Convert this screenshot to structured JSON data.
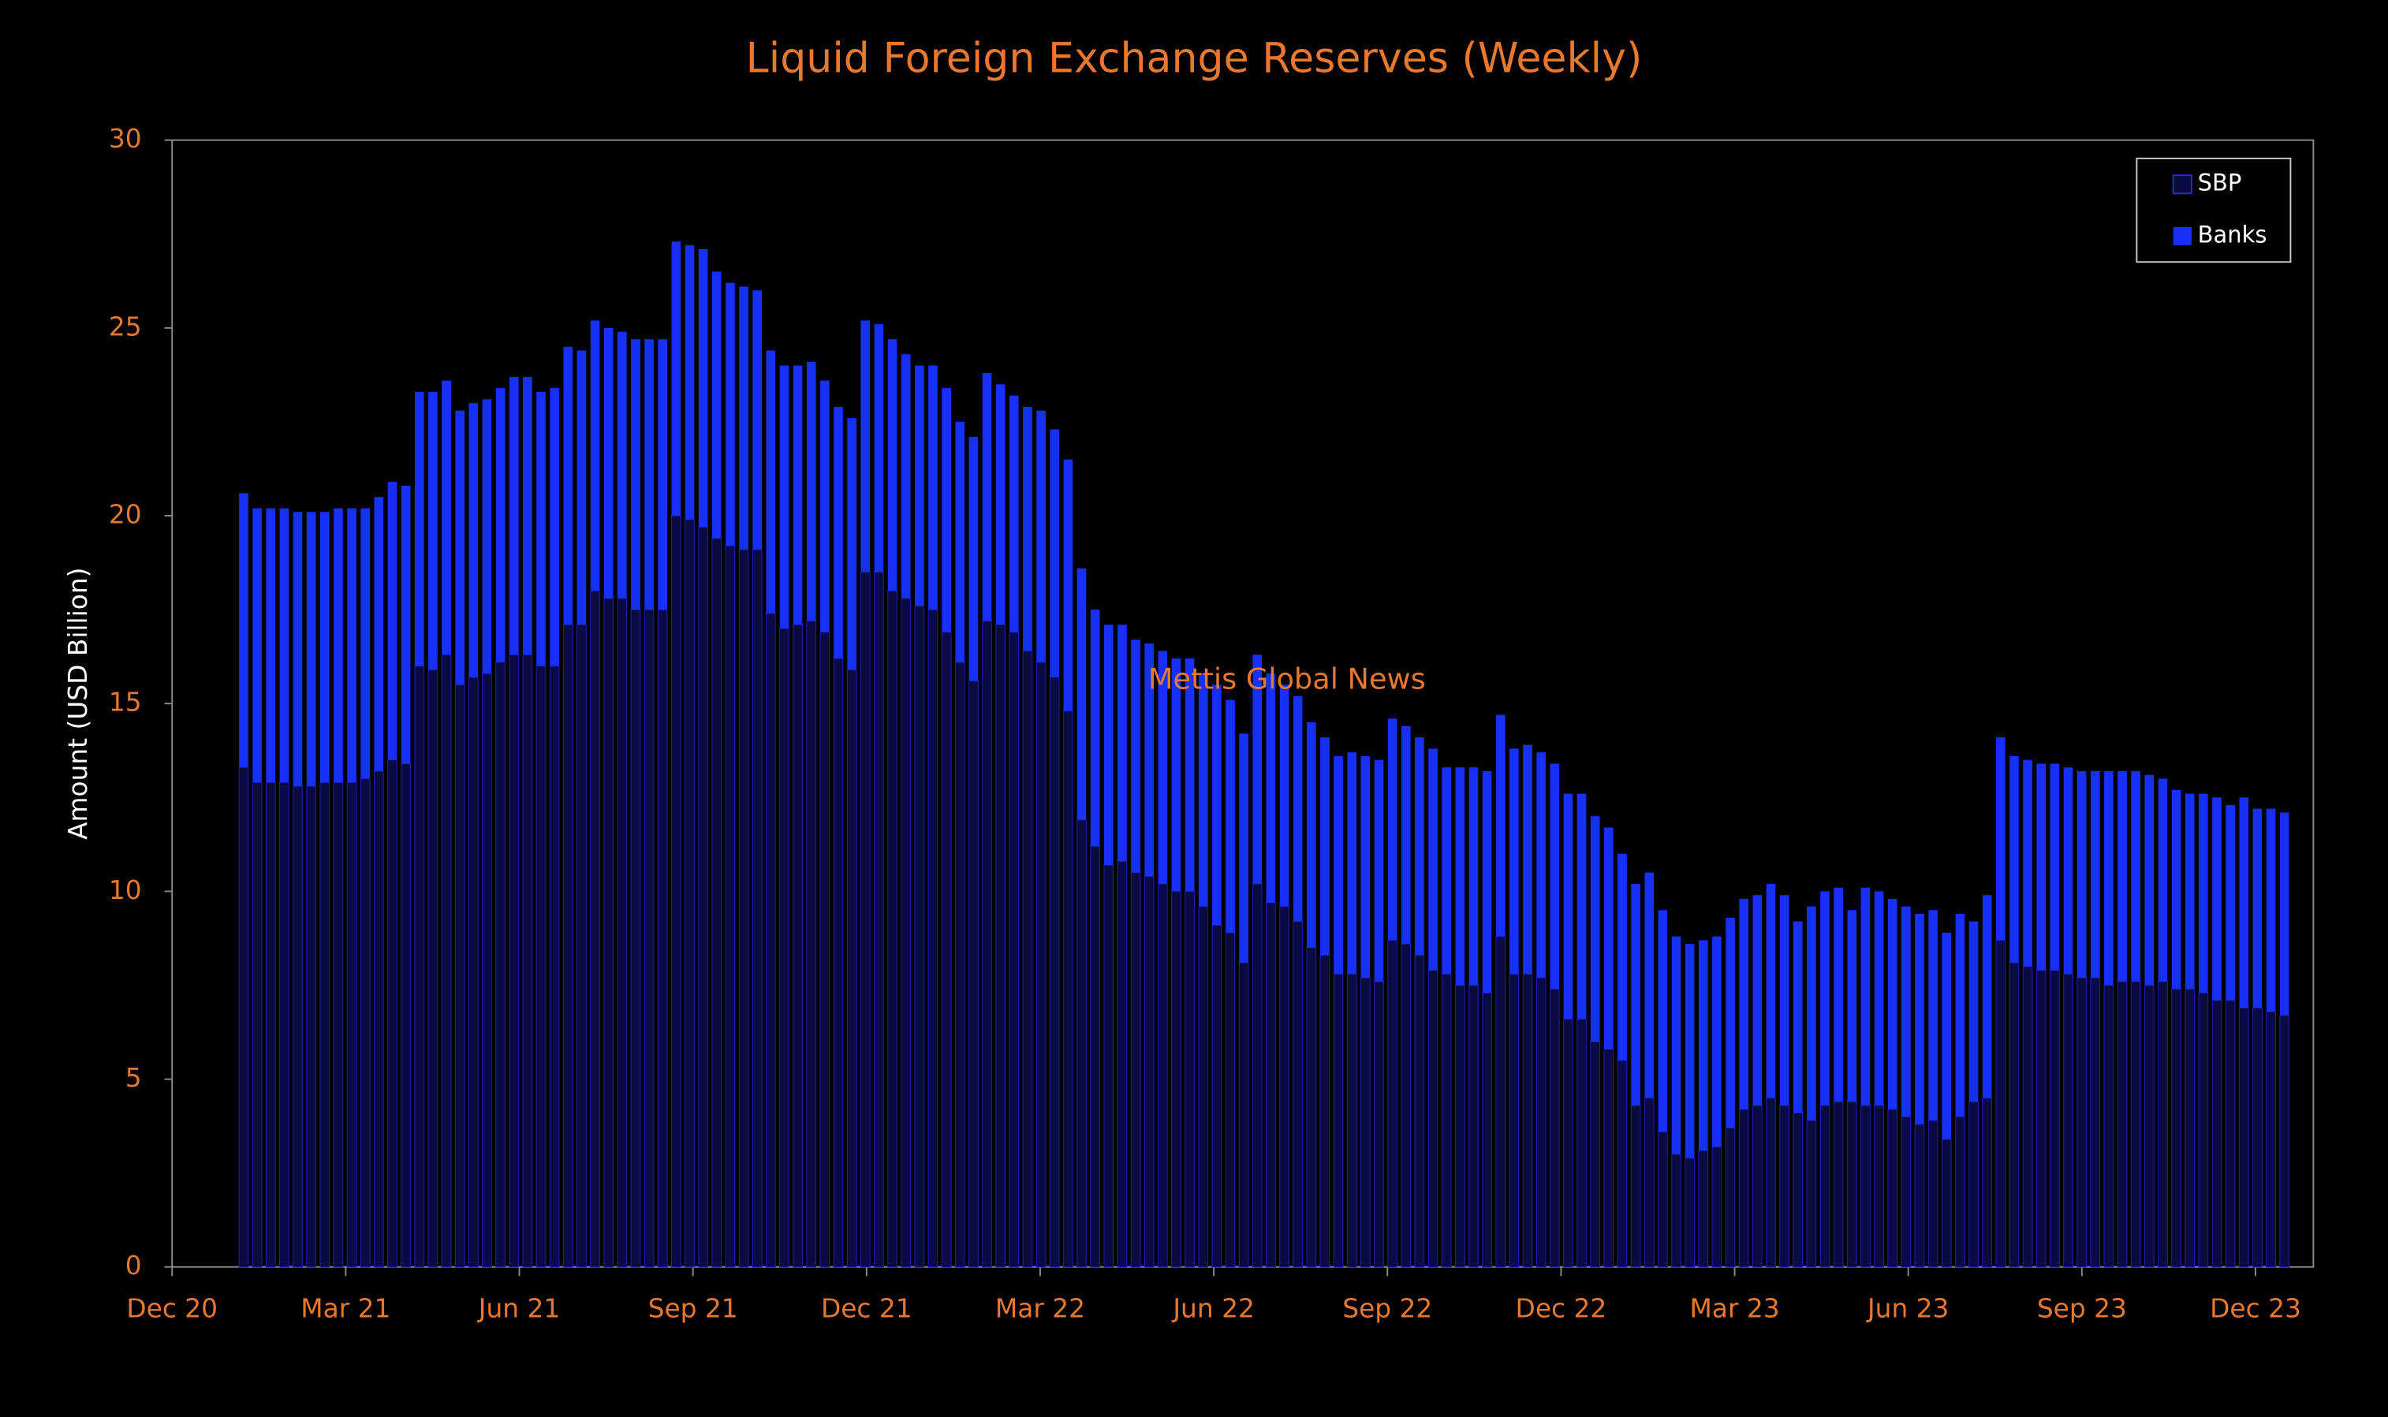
{
  "chart_data": {
    "type": "stacked_bar",
    "title": "Liquid Foreign Exchange Reserves (Weekly)",
    "y_label": "Amount (USD Billion)",
    "annotation": "Mettis Global News",
    "ylim": [
      0,
      30
    ],
    "yticks": [
      0,
      5,
      10,
      15,
      20,
      25,
      30
    ],
    "xticks": [
      "Dec 20",
      "Mar 21",
      "Jun 21",
      "Sep 21",
      "Dec 21",
      "Mar 22",
      "Jun 22",
      "Sep 22",
      "Dec 22",
      "Mar 23",
      "Jun 23",
      "Sep 23",
      "Dec 23"
    ],
    "legend": "top-right",
    "series": [
      {
        "name": "SBP",
        "color": "#0a0a45",
        "values": [
          13.3,
          12.9,
          12.9,
          12.9,
          12.8,
          12.8,
          12.9,
          12.9,
          12.9,
          13.0,
          13.2,
          13.5,
          13.4,
          16.0,
          15.9,
          16.3,
          15.5,
          15.7,
          15.8,
          16.1,
          16.3,
          16.3,
          16.0,
          16.0,
          17.1,
          17.1,
          18.0,
          17.8,
          17.8,
          17.5,
          17.5,
          17.5,
          20.0,
          19.9,
          19.7,
          19.4,
          19.2,
          19.1,
          19.1,
          17.4,
          17.0,
          17.1,
          17.2,
          16.9,
          16.2,
          15.9,
          18.5,
          18.5,
          18.0,
          17.8,
          17.6,
          17.5,
          16.9,
          16.1,
          15.6,
          17.2,
          17.1,
          16.9,
          16.4,
          16.1,
          15.7,
          14.8,
          11.9,
          11.2,
          10.7,
          10.8,
          10.5,
          10.4,
          10.2,
          10.0,
          10.0,
          9.6,
          9.1,
          8.9,
          8.1,
          10.2,
          9.7,
          9.6,
          9.2,
          8.5,
          8.3,
          7.8,
          7.8,
          7.7,
          7.6,
          8.7,
          8.6,
          8.3,
          7.9,
          7.8,
          7.5,
          7.5,
          7.3,
          8.8,
          7.8,
          7.8,
          7.7,
          7.4,
          6.6,
          6.6,
          6.0,
          5.8,
          5.5,
          4.3,
          4.5,
          3.6,
          3.0,
          2.9,
          3.1,
          3.2,
          3.7,
          4.2,
          4.3,
          4.5,
          4.3,
          4.1,
          3.9,
          4.3,
          4.4,
          4.4,
          4.3,
          4.3,
          4.2,
          4.0,
          3.8,
          3.9,
          3.4,
          4.0,
          4.4,
          4.5,
          8.7,
          8.1,
          8.0,
          7.9,
          7.9,
          7.8,
          7.7,
          7.7,
          7.5,
          7.6,
          7.6,
          7.5,
          7.6,
          7.4,
          7.4,
          7.3,
          7.1,
          7.1,
          6.9,
          6.9,
          6.8,
          6.7
        ]
      },
      {
        "name": "Banks",
        "color": "#1630f5",
        "values": [
          7.3,
          7.3,
          7.3,
          7.3,
          7.3,
          7.3,
          7.2,
          7.3,
          7.3,
          7.2,
          7.3,
          7.4,
          7.4,
          7.3,
          7.4,
          7.3,
          7.3,
          7.3,
          7.3,
          7.3,
          7.4,
          7.4,
          7.3,
          7.4,
          7.4,
          7.3,
          7.2,
          7.2,
          7.1,
          7.2,
          7.2,
          7.2,
          7.3,
          7.3,
          7.4,
          7.1,
          7.0,
          7.0,
          6.9,
          7.0,
          7.0,
          6.9,
          6.9,
          6.7,
          6.7,
          6.7,
          6.7,
          6.6,
          6.7,
          6.5,
          6.4,
          6.5,
          6.5,
          6.4,
          6.5,
          6.6,
          6.4,
          6.3,
          6.5,
          6.7,
          6.6,
          6.7,
          6.7,
          6.3,
          6.4,
          6.3,
          6.2,
          6.2,
          6.2,
          6.2,
          6.2,
          6.2,
          6.4,
          6.2,
          6.1,
          6.1,
          6.1,
          5.9,
          6.0,
          6.0,
          5.8,
          5.8,
          5.9,
          5.9,
          5.9,
          5.9,
          5.8,
          5.8,
          5.9,
          5.5,
          5.8,
          5.8,
          5.9,
          5.9,
          6.0,
          6.1,
          6.0,
          6.0,
          6.0,
          6.0,
          6.0,
          5.9,
          5.5,
          5.9,
          6.0,
          5.9,
          5.8,
          5.7,
          5.6,
          5.6,
          5.6,
          5.6,
          5.6,
          5.7,
          5.6,
          5.1,
          5.7,
          5.7,
          5.7,
          5.1,
          5.8,
          5.7,
          5.6,
          5.6,
          5.6,
          5.6,
          5.5,
          5.4,
          4.8,
          5.4,
          5.4,
          5.5,
          5.5,
          5.5,
          5.5,
          5.5,
          5.5,
          5.5,
          5.7,
          5.6,
          5.6,
          5.6,
          5.4,
          5.3,
          5.2,
          5.3,
          5.4,
          5.2,
          5.6,
          5.3,
          5.4,
          5.4
        ]
      }
    ]
  }
}
